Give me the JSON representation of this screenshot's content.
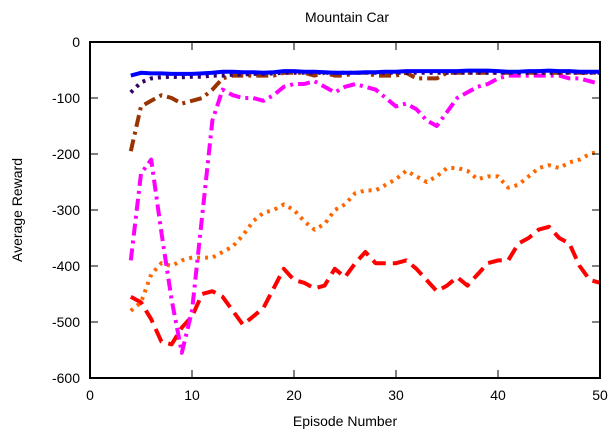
{
  "chart_data": {
    "type": "line",
    "title": "Mountain Car",
    "xlabel": "Episode Number",
    "ylabel": "Average Reward",
    "xlim": [
      0,
      50
    ],
    "ylim": [
      -600,
      0
    ],
    "xticks": [
      0,
      10,
      20,
      30,
      40,
      50
    ],
    "yticks": [
      0,
      -100,
      -200,
      -300,
      -400,
      -500,
      -600
    ],
    "grid": false,
    "legend": "none",
    "series": [
      {
        "color": "#ff0000",
        "dash": "dashed",
        "x": [
          4,
          5,
          6,
          7,
          8,
          9,
          10,
          11,
          12,
          13,
          14,
          15,
          16,
          17,
          18,
          19,
          20,
          21,
          22,
          23,
          24,
          25,
          26,
          27,
          28,
          29,
          30,
          31,
          32,
          33,
          34,
          35,
          36,
          37,
          38,
          39,
          40,
          41,
          42,
          43,
          44,
          45,
          46,
          47,
          48,
          49,
          50
        ],
        "y": [
          -455,
          -465,
          -495,
          -535,
          -540,
          -510,
          -490,
          -450,
          -445,
          -455,
          -480,
          -505,
          -490,
          -475,
          -440,
          -405,
          -425,
          -430,
          -440,
          -435,
          -405,
          -420,
          -395,
          -375,
          -395,
          -395,
          -395,
          -390,
          -405,
          -425,
          -445,
          -435,
          -420,
          -435,
          -415,
          -395,
          -390,
          -390,
          -360,
          -350,
          -335,
          -330,
          -350,
          -360,
          -400,
          -425,
          -430
        ]
      },
      {
        "color": "#ff6600",
        "dash": "dotted",
        "x": [
          4,
          5,
          6,
          7,
          8,
          9,
          10,
          11,
          12,
          13,
          14,
          15,
          16,
          17,
          18,
          19,
          20,
          21,
          22,
          23,
          24,
          25,
          26,
          27,
          28,
          29,
          30,
          31,
          32,
          33,
          34,
          35,
          36,
          37,
          38,
          39,
          40,
          41,
          42,
          43,
          44,
          45,
          46,
          47,
          48,
          49,
          50
        ],
        "y": [
          -480,
          -465,
          -415,
          -395,
          -400,
          -390,
          -385,
          -385,
          -385,
          -375,
          -365,
          -345,
          -320,
          -305,
          -300,
          -290,
          -300,
          -320,
          -335,
          -325,
          -300,
          -290,
          -270,
          -265,
          -265,
          -255,
          -245,
          -230,
          -240,
          -250,
          -240,
          -225,
          -225,
          -230,
          -245,
          -240,
          -240,
          -260,
          -255,
          -240,
          -225,
          -220,
          -225,
          -215,
          -210,
          -200,
          -195
        ]
      },
      {
        "color": "#ff00ff",
        "dash": "dashdot",
        "x": [
          4,
          5,
          6,
          7,
          8,
          9,
          10,
          11,
          12,
          13,
          14,
          15,
          16,
          17,
          18,
          19,
          20,
          21,
          22,
          23,
          24,
          25,
          26,
          27,
          28,
          29,
          30,
          31,
          32,
          33,
          34,
          35,
          36,
          37,
          38,
          39,
          40,
          41,
          42,
          43,
          44,
          45,
          46,
          47,
          48,
          49,
          50
        ],
        "y": [
          -390,
          -235,
          -210,
          -340,
          -460,
          -555,
          -480,
          -310,
          -140,
          -85,
          -95,
          -100,
          -100,
          -105,
          -95,
          -80,
          -75,
          -75,
          -70,
          -80,
          -90,
          -80,
          -75,
          -80,
          -85,
          -100,
          -115,
          -110,
          -120,
          -140,
          -150,
          -125,
          -100,
          -90,
          -80,
          -75,
          -65,
          -60,
          -60,
          -60,
          -60,
          -60,
          -60,
          -65,
          -65,
          -70,
          -75
        ]
      },
      {
        "color": "#993300",
        "dash": "dashdot",
        "x": [
          4,
          5,
          6,
          7,
          8,
          9,
          10,
          11,
          12,
          13,
          14,
          15,
          16,
          17,
          18,
          19,
          20,
          21,
          22,
          23,
          24,
          25,
          26,
          27,
          28,
          29,
          30,
          31,
          32,
          33,
          34,
          35,
          36,
          37,
          38,
          39,
          40,
          41,
          42,
          43,
          44,
          45,
          46,
          47,
          48,
          49,
          50
        ],
        "y": [
          -195,
          -115,
          -105,
          -95,
          -100,
          -110,
          -105,
          -100,
          -85,
          -65,
          -60,
          -60,
          -60,
          -60,
          -60,
          -55,
          -55,
          -55,
          -60,
          -55,
          -60,
          -60,
          -55,
          -55,
          -60,
          -60,
          -60,
          -55,
          -65,
          -65,
          -65,
          -55,
          -55,
          -55,
          -55,
          -55,
          -55,
          -55,
          -55,
          -55,
          -55,
          -55,
          -55,
          -55,
          -55,
          -55,
          -55
        ]
      },
      {
        "color": "#330066",
        "dash": "dotted",
        "x": [
          4,
          5,
          6,
          7,
          8,
          9,
          10,
          11,
          12,
          13,
          14,
          15,
          16,
          17,
          18,
          19,
          20,
          21,
          22,
          23,
          24,
          25,
          26,
          27,
          28,
          29,
          30,
          31,
          32,
          33,
          34,
          35,
          36,
          37,
          38,
          39,
          40,
          41,
          42,
          43,
          44,
          45,
          46,
          47,
          48,
          49,
          50
        ],
        "y": [
          -90,
          -72,
          -65,
          -63,
          -62,
          -63,
          -62,
          -62,
          -60,
          -60,
          -58,
          -58,
          -57,
          -57,
          -56,
          -55,
          -55,
          -55,
          -55,
          -55,
          -55,
          -55,
          -55,
          -55,
          -55,
          -55,
          -55,
          -55,
          -55,
          -55,
          -55,
          -55,
          -55,
          -55,
          -55,
          -55,
          -55,
          -55,
          -55,
          -55,
          -55,
          -55,
          -55,
          -55,
          -55,
          -55,
          -55
        ]
      },
      {
        "color": "#0000ff",
        "dash": "solid",
        "x": [
          4,
          5,
          6,
          7,
          8,
          9,
          10,
          11,
          12,
          13,
          14,
          15,
          16,
          17,
          18,
          19,
          20,
          21,
          22,
          23,
          24,
          25,
          26,
          27,
          28,
          29,
          30,
          31,
          32,
          33,
          34,
          35,
          36,
          37,
          38,
          39,
          40,
          41,
          42,
          43,
          44,
          45,
          46,
          47,
          48,
          49,
          50
        ],
        "y": [
          -60,
          -55,
          -56,
          -56,
          -57,
          -57,
          -57,
          -56,
          -55,
          -53,
          -53,
          -54,
          -54,
          -55,
          -54,
          -52,
          -52,
          -53,
          -53,
          -54,
          -55,
          -55,
          -55,
          -54,
          -54,
          -53,
          -53,
          -52,
          -52,
          -52,
          -52,
          -52,
          -52,
          -51,
          -51,
          -51,
          -52,
          -53,
          -53,
          -52,
          -52,
          -51,
          -52,
          -52,
          -53,
          -53,
          -53
        ]
      }
    ]
  }
}
